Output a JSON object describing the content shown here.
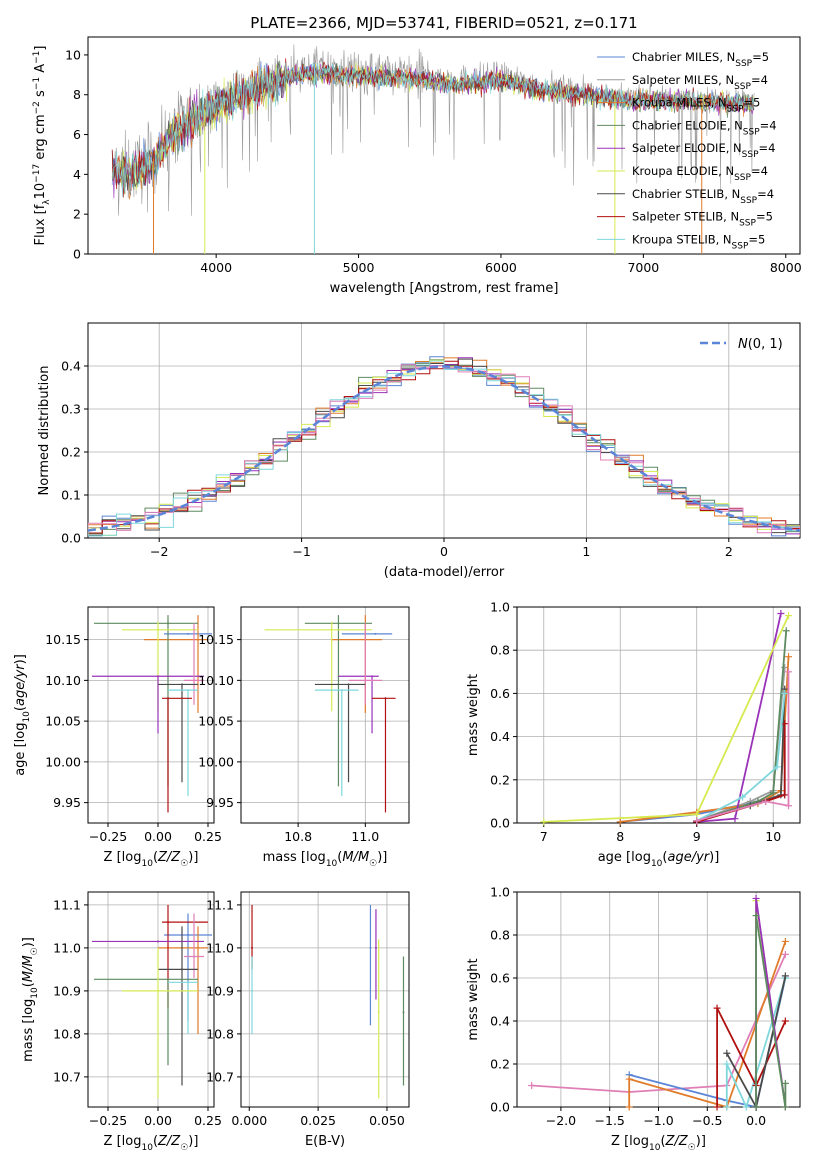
{
  "title": "PLATE=2366, MJD=53741, FIBERID=0521, z=0.171",
  "colors": {
    "Chabrier MILES": "#5b85d6",
    "Salpeter MILES": "#9b9b9b",
    "Kroupa MILES": "#e07b2a",
    "Chabrier ELODIE": "#5e8a60",
    "Salpeter ELODIE": "#9932b8",
    "Kroupa ELODIE": "#d6ea50",
    "Chabrier STELIB": "#4a4a4a",
    "Salpeter STELIB": "#b01010",
    "Kroupa STELIB": "#7fd7dc",
    "Pink": "#e07fb6",
    "Normal": "#5b85d6"
  },
  "chart_data": [
    {
      "id": "spectrum",
      "type": "line",
      "title": "PLATE=2366, MJD=53741, FIBERID=0521, z=0.171",
      "xlabel": "wavelength [Angstrom, rest frame]",
      "ylabel": "Flux [f_λ 10^-17 erg cm^-2 s^-1 A^-1]",
      "xlim": [
        3100,
        8100
      ],
      "ylim": [
        0,
        10.9
      ],
      "xticks": [
        "4000",
        "5000",
        "6000",
        "7000",
        "8000"
      ],
      "yticks": [
        "0",
        "2",
        "4",
        "6",
        "8",
        "10"
      ],
      "continuum": {
        "x": [
          3270,
          3400,
          3550,
          3700,
          3900,
          4050,
          4200,
          4400,
          4500,
          4700,
          4900,
          5100,
          5400,
          5700,
          6000,
          6300,
          6600,
          6900,
          7200,
          7500,
          7800
        ],
        "y": [
          4.3,
          4.2,
          4.7,
          6.2,
          7.2,
          7.8,
          8.3,
          8.8,
          9.1,
          9.3,
          9.2,
          9.1,
          9.0,
          8.7,
          8.9,
          8.4,
          8.2,
          7.9,
          7.9,
          7.8,
          7.7
        ]
      },
      "legend": [
        "Chabrier MILES, N_SSP=5",
        "Salpeter MILES, N_SSP=4",
        "Kroupa MILES, N_SSP=5",
        "Chabrier ELODIE, N_SSP=4",
        "Salpeter ELODIE, N_SSP=4",
        "Kroupa ELODIE, N_SSP=4",
        "Chabrier STELIB, N_SSP=4",
        "Salpeter STELIB, N_SSP=5",
        "Kroupa STELIB, N_SSP=5"
      ]
    },
    {
      "id": "residuals",
      "type": "bar",
      "xlabel": "(data-model)/error",
      "ylabel": "Normed distribution",
      "xlim": [
        -2.5,
        2.5
      ],
      "ylim": [
        0,
        0.5
      ],
      "xticks": [
        "−2",
        "−1",
        "0",
        "1",
        "2"
      ],
      "yticks": [
        "0.0",
        "0.1",
        "0.2",
        "0.3",
        "0.4"
      ],
      "legend": [
        "N(0,1)"
      ],
      "bin_width": 0.1
    },
    {
      "id": "age_vs_Z",
      "type": "scatter",
      "xlabel": "Z [log10(Z/Z☉)]",
      "ylabel": "age [log10(age/yr)]",
      "xlim": [
        -0.35,
        0.28
      ],
      "ylim": [
        9.925,
        10.19
      ],
      "xticks": [
        "−0.25",
        "0.00",
        "0.25"
      ],
      "yticks": [
        "9.95",
        "10.00",
        "10.05",
        "10.10",
        "10.15"
      ],
      "points": [
        {
          "series": "Chabrier MILES",
          "x": 0.15,
          "y": 10.157,
          "xerr": [
            0.12,
            0.12
          ],
          "yerr": [
            0.0,
            0.0
          ]
        },
        {
          "series": "Kroupa MILES",
          "x": 0.2,
          "y": 10.15,
          "xerr": [
            0.27,
            0.05
          ],
          "yerr": [
            0.09,
            0.03
          ]
        },
        {
          "series": "Chabrier ELODIE",
          "x": 0.05,
          "y": 10.17,
          "xerr": [
            0.37,
            0.15
          ],
          "yerr": [
            0.2,
            0.01
          ]
        },
        {
          "series": "Kroupa ELODIE",
          "x": 0.0,
          "y": 10.162,
          "xerr": [
            0.18,
            0.2
          ],
          "yerr": [
            0.1,
            0.01
          ]
        },
        {
          "series": "Salpeter ELODIE",
          "x": 0.0,
          "y": 10.105,
          "xerr": [
            0.33,
            0.23
          ],
          "yerr": [
            0.07,
            0.0
          ]
        },
        {
          "series": "Pink",
          "x": 0.18,
          "y": 10.1,
          "xerr": [
            0.05,
            0.05
          ],
          "yerr": [
            0.03,
            0.07
          ]
        },
        {
          "series": "Chabrier STELIB",
          "x": 0.12,
          "y": 10.095,
          "xerr": [
            0.12,
            0.08
          ],
          "yerr": [
            0.12,
            0.0
          ]
        },
        {
          "series": "Kroupa STELIB",
          "x": 0.15,
          "y": 10.088,
          "xerr": [
            0.1,
            0.05
          ],
          "yerr": [
            0.13,
            0.0
          ]
        },
        {
          "series": "Salpeter STELIB",
          "x": 0.05,
          "y": 10.078,
          "xerr": [
            0.03,
            0.12
          ],
          "yerr": [
            0.14,
            0.0
          ]
        }
      ]
    },
    {
      "id": "age_vs_mass",
      "type": "scatter",
      "xlabel": "mass [log10(M/M☉)]",
      "ylabel": "",
      "xlim": [
        10.63,
        11.13
      ],
      "ylim": [
        9.925,
        10.19
      ],
      "xticks": [
        "10.8",
        "11.0"
      ],
      "yticks": [
        "9.95",
        "10.00",
        "10.05",
        "10.10",
        "10.15"
      ],
      "points": [
        {
          "series": "Chabrier MILES",
          "x": 11.03,
          "y": 10.157,
          "xerr": [
            0.1,
            0.05
          ],
          "yerr": [
            0.0,
            0.0
          ]
        },
        {
          "series": "Kroupa MILES",
          "x": 11.0,
          "y": 10.15,
          "xerr": [
            0.1,
            0.05
          ],
          "yerr": [
            0.09,
            0.03
          ]
        },
        {
          "series": "Chabrier ELODIE",
          "x": 10.92,
          "y": 10.17,
          "xerr": [
            0.1,
            0.1
          ],
          "yerr": [
            0.2,
            0.01
          ]
        },
        {
          "series": "Kroupa ELODIE",
          "x": 10.9,
          "y": 10.162,
          "xerr": [
            0.2,
            0.12
          ],
          "yerr": [
            0.1,
            0.01
          ]
        },
        {
          "series": "Salpeter ELODIE",
          "x": 11.02,
          "y": 10.105,
          "xerr": [
            0.1,
            0.02
          ],
          "yerr": [
            0.07,
            0.0
          ]
        },
        {
          "series": "Pink",
          "x": 11.0,
          "y": 10.1,
          "xerr": [
            0.05,
            0.05
          ],
          "yerr": [
            0.03,
            0.07
          ]
        },
        {
          "series": "Chabrier STELIB",
          "x": 10.95,
          "y": 10.095,
          "xerr": [
            0.1,
            0.05
          ],
          "yerr": [
            0.12,
            0.0
          ]
        },
        {
          "series": "Kroupa STELIB",
          "x": 10.93,
          "y": 10.088,
          "xerr": [
            0.08,
            0.05
          ],
          "yerr": [
            0.13,
            0.0
          ]
        },
        {
          "series": "Salpeter STELIB",
          "x": 11.06,
          "y": 10.078,
          "xerr": [
            0.04,
            0.03
          ],
          "yerr": [
            0.14,
            0.0
          ]
        }
      ]
    },
    {
      "id": "massweight_vs_age",
      "type": "line",
      "xlabel": "age [log10(age/yr)]",
      "ylabel": "mass weight",
      "xlim": [
        6.65,
        10.35
      ],
      "ylim": [
        0,
        1.0
      ],
      "xticks": [
        "7",
        "8",
        "9",
        "10"
      ],
      "yticks": [
        "0.0",
        "0.2",
        "0.4",
        "0.6",
        "0.8",
        "1.0"
      ],
      "series": [
        {
          "name": "Chabrier MILES",
          "x": [
            8.0,
            9.0,
            9.8,
            10.15,
            10.15
          ],
          "y": [
            0.005,
            0.04,
            0.1,
            0.13,
            0.6
          ]
        },
        {
          "name": "Salpeter MILES",
          "x": [
            9.0,
            9.7,
            10.0,
            10.15
          ],
          "y": [
            0.01,
            0.1,
            0.15,
            0.72
          ]
        },
        {
          "name": "Kroupa MILES",
          "x": [
            8.0,
            9.0,
            9.8,
            10.1,
            10.2
          ],
          "y": [
            0.005,
            0.05,
            0.09,
            0.15,
            0.77
          ]
        },
        {
          "name": "Chabrier ELODIE",
          "x": [
            9.0,
            9.8,
            10.0,
            10.17
          ],
          "y": [
            0.01,
            0.1,
            0.14,
            0.89
          ]
        },
        {
          "name": "Salpeter ELODIE",
          "x": [
            9.0,
            9.5,
            10.1
          ],
          "y": [
            0.005,
            0.02,
            0.97
          ]
        },
        {
          "name": "Kroupa ELODIE",
          "x": [
            7.0,
            9.0,
            10.2
          ],
          "y": [
            0.005,
            0.04,
            0.96
          ]
        },
        {
          "name": "Chabrier STELIB",
          "x": [
            9.0,
            9.7,
            10.1,
            10.15
          ],
          "y": [
            0.01,
            0.08,
            0.13,
            0.62
          ]
        },
        {
          "name": "Salpeter STELIB",
          "x": [
            9.0,
            9.9,
            10.15,
            10.15
          ],
          "y": [
            0.005,
            0.1,
            0.13,
            0.46
          ]
        },
        {
          "name": "Kroupa STELIB",
          "x": [
            9.0,
            9.6,
            10.05,
            10.15
          ],
          "y": [
            0.01,
            0.12,
            0.26,
            0.6
          ]
        },
        {
          "name": "Pink",
          "x": [
            9.0,
            9.9,
            10.2,
            10.2
          ],
          "y": [
            0.01,
            0.1,
            0.08,
            0.7
          ]
        }
      ]
    },
    {
      "id": "mass_vs_Z",
      "type": "scatter",
      "xlabel": "Z [log10(Z/Z☉)]",
      "ylabel": "mass [log10(M/M☉)]",
      "xlim": [
        -0.35,
        0.28
      ],
      "ylim": [
        10.63,
        11.13
      ],
      "xticks": [
        "−0.25",
        "0.00",
        "0.25"
      ],
      "yticks": [
        "10.7",
        "10.8",
        "10.9",
        "11.0",
        "11.1"
      ],
      "points": [
        {
          "series": "Chabrier MILES",
          "x": 0.15,
          "y": 11.03,
          "xerr": [
            0.12,
            0.12
          ],
          "yerr": [
            0.2,
            0.05
          ]
        },
        {
          "series": "Kroupa MILES",
          "x": 0.2,
          "y": 11.0,
          "xerr": [
            0.2,
            0.05
          ],
          "yerr": [
            0.2,
            0.05
          ]
        },
        {
          "series": "Salpeter STELIB",
          "x": 0.05,
          "y": 11.06,
          "xerr": [
            0.03,
            0.2
          ],
          "yerr": [
            0.2,
            0.04
          ]
        },
        {
          "series": "Salpeter ELODIE",
          "x": 0.0,
          "y": 11.015,
          "xerr": [
            0.33,
            0.23
          ],
          "yerr": [
            0.0,
            0.0
          ]
        },
        {
          "series": "Pink",
          "x": 0.18,
          "y": 10.98,
          "xerr": [
            0.05,
            0.05
          ],
          "yerr": [
            0.05,
            0.1
          ]
        },
        {
          "series": "Chabrier STELIB",
          "x": 0.12,
          "y": 10.95,
          "xerr": [
            0.12,
            0.08
          ],
          "yerr": [
            0.27,
            0.1
          ]
        },
        {
          "series": "Chabrier ELODIE",
          "x": 0.05,
          "y": 10.927,
          "xerr": [
            0.37,
            0.15
          ],
          "yerr": [
            0.2,
            0.0
          ]
        },
        {
          "series": "Kroupa STELIB",
          "x": 0.15,
          "y": 10.92,
          "xerr": [
            0.1,
            0.05
          ],
          "yerr": [
            0.12,
            0.0
          ]
        },
        {
          "series": "Kroupa ELODIE",
          "x": 0.0,
          "y": 10.9,
          "xerr": [
            0.18,
            0.2
          ],
          "yerr": [
            0.25,
            0.1
          ]
        }
      ]
    },
    {
      "id": "mass_vs_EBV",
      "type": "scatter",
      "xlabel": "E(B-V)",
      "ylabel": "",
      "xlim": [
        -0.003,
        0.058
      ],
      "ylim": [
        10.63,
        11.13
      ],
      "xticks": [
        "0.000",
        "0.025",
        "0.050"
      ],
      "yticks": [
        "10.7",
        "10.8",
        "10.9",
        "11.0",
        "11.1"
      ],
      "points": [
        {
          "series": "Salpeter STELIB",
          "x": 0.001,
          "y": 11.0,
          "xerr": [
            0,
            0
          ],
          "yerr": [
            0.05,
            0.1
          ]
        },
        {
          "series": "Kroupa STELIB",
          "x": 0.001,
          "y": 10.9,
          "xerr": [
            0,
            0
          ],
          "yerr": [
            0.1,
            0.08
          ]
        },
        {
          "series": "Chabrier MILES",
          "x": 0.044,
          "y": 11.0,
          "xerr": [
            0,
            0
          ],
          "yerr": [
            0.18,
            0.1
          ]
        },
        {
          "series": "Salpeter ELODIE",
          "x": 0.046,
          "y": 11.0,
          "xerr": [
            0,
            0
          ],
          "yerr": [
            0.12,
            0.09
          ]
        },
        {
          "series": "Kroupa ELODIE",
          "x": 0.047,
          "y": 10.85,
          "xerr": [
            0,
            0
          ],
          "yerr": [
            0.2,
            0.17
          ]
        },
        {
          "series": "Chabrier ELODIE",
          "x": 0.056,
          "y": 10.85,
          "xerr": [
            0,
            0
          ],
          "yerr": [
            0.17,
            0.13
          ]
        }
      ]
    },
    {
      "id": "massweight_vs_Z",
      "type": "line",
      "xlabel": "Z [log10(Z/Z☉)]",
      "ylabel": "mass weight",
      "xlim": [
        -2.45,
        0.45
      ],
      "ylim": [
        0,
        1.0
      ],
      "xticks": [
        "−2.0",
        "−1.5",
        "−1.0",
        "−0.5",
        "0.0"
      ],
      "yticks": [
        "0.0",
        "0.2",
        "0.4",
        "0.6",
        "0.8",
        "1.0"
      ],
      "series": [
        {
          "name": "Pink",
          "x": [
            -2.3,
            -1.3,
            -0.3,
            0.3
          ],
          "y": [
            0.1,
            0.07,
            0.1,
            0.71
          ]
        },
        {
          "name": "Chabrier MILES",
          "x": [
            -1.3,
            -0.3,
            0.0,
            0.3
          ],
          "y": [
            0.15,
            0.03,
            0.0,
            0.6
          ]
        },
        {
          "name": "Kroupa MILES",
          "x": [
            -1.3,
            -1.3,
            -0.3,
            0.3
          ],
          "y": [
            0.0,
            0.13,
            0.0,
            0.77
          ]
        },
        {
          "name": "Kroupa STELIB",
          "x": [
            -0.3,
            -0.3,
            -0.1,
            0.3
          ],
          "y": [
            0.0,
            0.2,
            0.0,
            0.6
          ]
        },
        {
          "name": "Salpeter STELIB",
          "x": [
            -0.4,
            -0.4,
            0.0,
            0.3
          ],
          "y": [
            0.0,
            0.46,
            0.1,
            0.4
          ]
        },
        {
          "name": "Chabrier STELIB",
          "x": [
            -0.3,
            0.0,
            0.3
          ],
          "y": [
            0.25,
            0.0,
            0.61
          ]
        },
        {
          "name": "Kroupa ELODIE",
          "x": [
            0.0,
            0.0,
            0.3
          ],
          "y": [
            0.0,
            0.96,
            0.0
          ]
        },
        {
          "name": "Salpeter ELODIE",
          "x": [
            0.0,
            0.0,
            0.3
          ],
          "y": [
            0.0,
            0.97,
            0.0
          ]
        },
        {
          "name": "Chabrier ELODIE",
          "x": [
            0.0,
            0.0,
            0.3,
            0.3
          ],
          "y": [
            0.0,
            0.89,
            0.0,
            0.11
          ]
        }
      ]
    }
  ]
}
